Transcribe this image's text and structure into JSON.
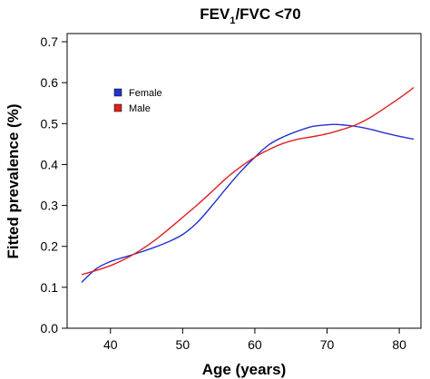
{
  "chart_data": {
    "type": "line",
    "title": {
      "prefix": "FEV",
      "subscript": "1",
      "suffix": "/FVC <70"
    },
    "xlabel": "Age (years)",
    "ylabel": "Fitted prevalence (%)",
    "xlim": [
      34,
      83
    ],
    "ylim": [
      0.0,
      0.72
    ],
    "xticks": [
      40,
      50,
      60,
      70,
      80
    ],
    "yticks": [
      0.0,
      0.1,
      0.2,
      0.3,
      0.4,
      0.5,
      0.6,
      0.7
    ],
    "ytick_labels": [
      "0.0",
      "0.1",
      "0.2",
      "0.3",
      "0.4",
      "0.5",
      "0.6",
      "0.7"
    ],
    "grid": false,
    "legend_position": "top-left",
    "series": [
      {
        "name": "Female",
        "color": "#2233cc",
        "x": [
          36,
          38,
          40,
          42,
          44,
          46,
          48,
          50,
          52,
          54,
          56,
          58,
          60,
          62,
          64,
          66,
          68,
          70,
          71,
          72,
          74,
          76,
          78,
          80,
          82
        ],
        "y": [
          0.112,
          0.145,
          0.163,
          0.174,
          0.185,
          0.197,
          0.211,
          0.229,
          0.258,
          0.298,
          0.341,
          0.382,
          0.418,
          0.449,
          0.468,
          0.482,
          0.493,
          0.497,
          0.498,
          0.497,
          0.493,
          0.486,
          0.477,
          0.469,
          0.462
        ]
      },
      {
        "name": "Male",
        "color": "#dd2222",
        "x": [
          36,
          38,
          40,
          42,
          44,
          46,
          48,
          50,
          52,
          54,
          56,
          58,
          60,
          62,
          64,
          66,
          68,
          70,
          72,
          74,
          76,
          78,
          80,
          82
        ],
        "y": [
          0.131,
          0.141,
          0.153,
          0.169,
          0.189,
          0.213,
          0.241,
          0.271,
          0.301,
          0.333,
          0.366,
          0.394,
          0.418,
          0.437,
          0.452,
          0.462,
          0.468,
          0.475,
          0.485,
          0.497,
          0.515,
          0.538,
          0.562,
          0.588
        ]
      }
    ]
  }
}
